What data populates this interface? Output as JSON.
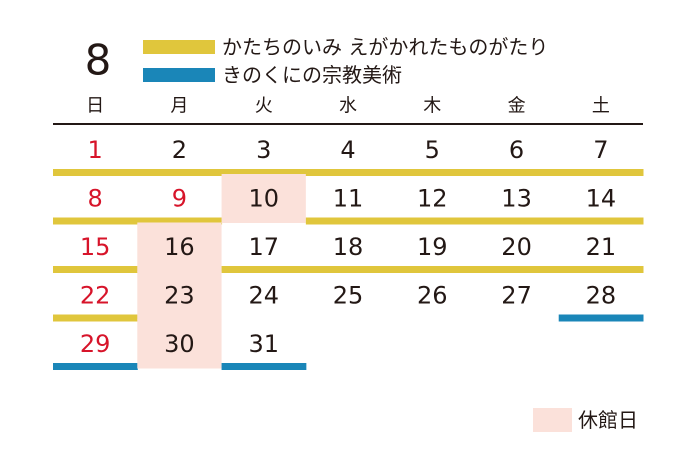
{
  "month": "8",
  "exhibitions": [
    {
      "name": "かたちのいみ えがかれたものがたり",
      "color": "#e0c63c"
    },
    {
      "name": "きのくにの宗教美術",
      "color": "#1a86b8"
    }
  ],
  "weekdays": [
    "日",
    "月",
    "火",
    "水",
    "木",
    "金",
    "土"
  ],
  "weeks": [
    [
      {
        "day": 1,
        "ex": [
          0
        ]
      },
      {
        "day": 2,
        "ex": [
          0
        ]
      },
      {
        "day": 3,
        "ex": [
          0
        ]
      },
      {
        "day": 4,
        "ex": [
          0
        ]
      },
      {
        "day": 5,
        "ex": [
          0
        ]
      },
      {
        "day": 6,
        "ex": [
          0
        ]
      },
      {
        "day": 7,
        "ex": [
          0
        ]
      }
    ],
    [
      {
        "day": 8,
        "ex": [
          0
        ]
      },
      {
        "day": 9,
        "ex": [
          0
        ],
        "holiday": true
      },
      {
        "day": 10,
        "ex": [],
        "closed": true
      },
      {
        "day": 11,
        "ex": [
          0
        ]
      },
      {
        "day": 12,
        "ex": [
          0
        ]
      },
      {
        "day": 13,
        "ex": [
          0
        ]
      },
      {
        "day": 14,
        "ex": [
          0
        ]
      }
    ],
    [
      {
        "day": 15,
        "ex": [
          0
        ]
      },
      {
        "day": 16,
        "ex": [],
        "closed": true
      },
      {
        "day": 17,
        "ex": [
          0
        ]
      },
      {
        "day": 18,
        "ex": [
          0
        ]
      },
      {
        "day": 19,
        "ex": [
          0
        ]
      },
      {
        "day": 20,
        "ex": [
          0
        ]
      },
      {
        "day": 21,
        "ex": [
          0
        ]
      }
    ],
    [
      {
        "day": 22,
        "ex": [
          0
        ]
      },
      {
        "day": 23,
        "ex": [],
        "closed": true
      },
      {
        "day": 24,
        "ex": []
      },
      {
        "day": 25,
        "ex": []
      },
      {
        "day": 26,
        "ex": []
      },
      {
        "day": 27,
        "ex": []
      },
      {
        "day": 28,
        "ex": [
          1
        ]
      }
    ],
    [
      {
        "day": 29,
        "ex": [
          1
        ]
      },
      {
        "day": 30,
        "ex": [],
        "closed": true
      },
      {
        "day": 31,
        "ex": [
          1
        ]
      }
    ]
  ],
  "closed_legend": {
    "label": "休館日",
    "color": "#fbe1da"
  },
  "holiday_color": "#d7142a"
}
